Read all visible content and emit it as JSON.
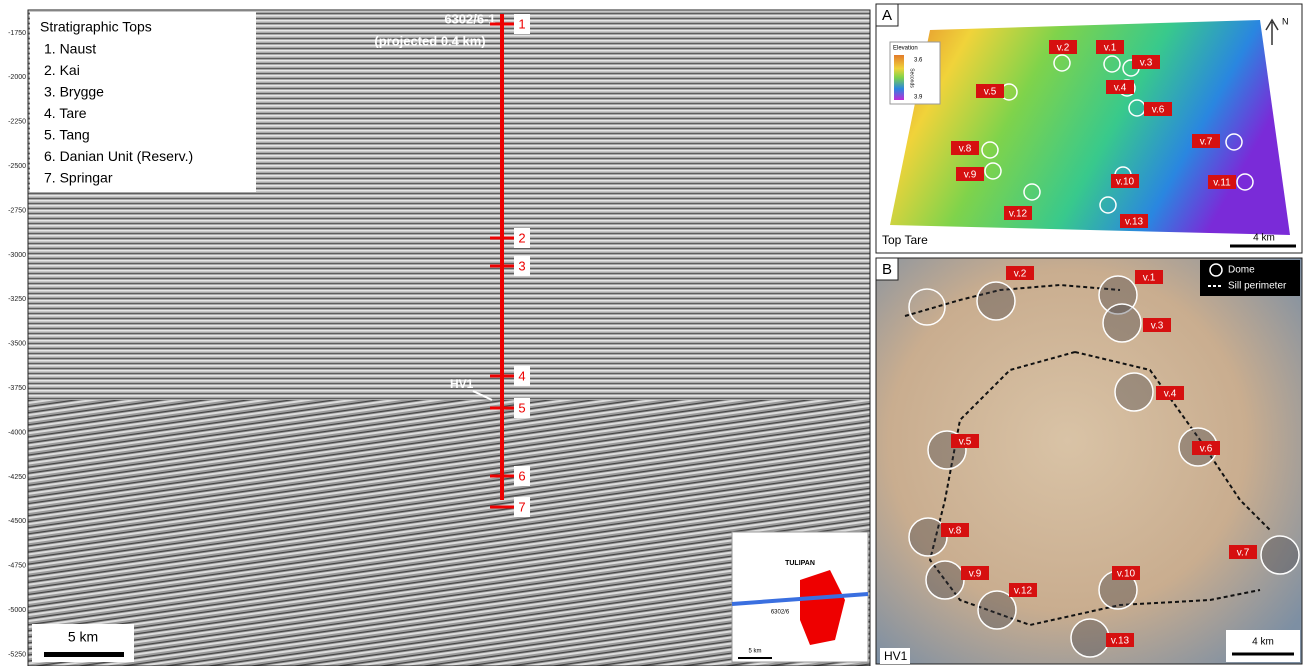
{
  "left_panel": {
    "legend_title": "Stratigraphic Tops",
    "legend_items": [
      "1. Naust",
      "2. Kai",
      "3. Brygge",
      "4. Tare",
      "5. Tang",
      "6. Danian Unit (Reserv.)",
      "7. Springar"
    ],
    "well": {
      "name": "6302/6-1",
      "note": "(projected 0.4 km)"
    },
    "markers": [
      "1",
      "2",
      "3",
      "4",
      "5",
      "6",
      "7"
    ],
    "hv1": "HV1",
    "scale": "5 km",
    "depth_labels": [
      "-1750",
      "-2000",
      "-2250",
      "-2500",
      "-2750",
      "-3000",
      "-3250",
      "-3500",
      "-3750",
      "-4000",
      "-4250",
      "-4500",
      "-4750",
      "-5000",
      "-5250"
    ],
    "inset": {
      "title": "TULIPAN",
      "well": "6302/6",
      "scale": "5 km"
    }
  },
  "panel_a": {
    "letter": "A",
    "colorbar": {
      "title": "Elevation",
      "top": "3.6",
      "axis": "Seconds",
      "bottom": "3.9"
    },
    "north": "N",
    "volcanoes": [
      "v.1",
      "v.2",
      "v.3",
      "v.4",
      "v.5",
      "v.6",
      "v.7",
      "v.8",
      "v.9",
      "v.10",
      "v.11",
      "v.12",
      "v.13"
    ],
    "caption": "Top Tare",
    "scale": "4 km"
  },
  "panel_b": {
    "letter": "B",
    "legend": [
      "Dome",
      "Sill perimeter"
    ],
    "volcanoes": [
      "v.1",
      "v.2",
      "v.3",
      "v.4",
      "v.5",
      "v.6",
      "v.7",
      "v.8",
      "v.9",
      "v.10",
      "v.12",
      "v.13"
    ],
    "caption": "HV1",
    "scale": "4 km"
  }
}
